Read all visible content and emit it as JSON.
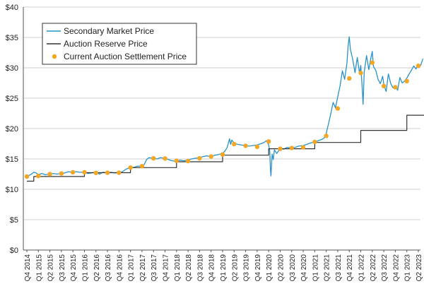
{
  "chart_data": {
    "type": "line",
    "title": "",
    "xlabel": "",
    "ylabel": "",
    "ylim": [
      0,
      40
    ],
    "grid": "horizontal",
    "legend_position": "top-left",
    "y_ticks": [
      0,
      5,
      10,
      15,
      20,
      25,
      30,
      35,
      40
    ],
    "y_tick_labels": [
      "$0",
      "$5",
      "$10",
      "$15",
      "$20",
      "$25",
      "$30",
      "$35",
      "$40"
    ],
    "categories": [
      "Q4 2014",
      "Q1 2015",
      "Q2 2015",
      "Q3 2015",
      "Q4 2015",
      "Q1 2016",
      "Q2 2016",
      "Q3 2016",
      "Q4 2016",
      "Q1 2017",
      "Q2 2017",
      "Q3 2017",
      "Q4 2017",
      "Q1 2018",
      "Q2 2018",
      "Q3 2018",
      "Q4 2018",
      "Q1 2019",
      "Q2 2019",
      "Q3 2019",
      "Q4 2019",
      "Q1 2020",
      "Q2 2020",
      "Q3 2020",
      "Q4 2020",
      "Q1 2021",
      "Q2 2021",
      "Q3 2021",
      "Q4 2021",
      "Q1 2022",
      "Q2 2022",
      "Q3 2022",
      "Q4 2022",
      "Q1 2023",
      "Q2 2023"
    ],
    "series": [
      {
        "name": "Secondary Market Price",
        "style": "line",
        "color": "#2a93c9",
        "points": [
          [
            0,
            12.1
          ],
          [
            0.2,
            12.3
          ],
          [
            0.4,
            12.5
          ],
          [
            0.6,
            12.8
          ],
          [
            0.8,
            12.7
          ],
          [
            1,
            12.4
          ],
          [
            1.3,
            12.6
          ],
          [
            1.6,
            12.4
          ],
          [
            2,
            12.5
          ],
          [
            2.3,
            12.6
          ],
          [
            2.6,
            12.5
          ],
          [
            3,
            12.6
          ],
          [
            3.3,
            12.7
          ],
          [
            3.6,
            12.9
          ],
          [
            4,
            12.8
          ],
          [
            4.3,
            12.9
          ],
          [
            4.6,
            12.8
          ],
          [
            5,
            12.8
          ],
          [
            5.3,
            12.6
          ],
          [
            5.6,
            12.7
          ],
          [
            6,
            12.8
          ],
          [
            6.3,
            12.5
          ],
          [
            6.6,
            12.8
          ],
          [
            7,
            12.7
          ],
          [
            7.3,
            12.8
          ],
          [
            7.6,
            12.7
          ],
          [
            8,
            12.8
          ],
          [
            8.3,
            12.9
          ],
          [
            8.6,
            13.3
          ],
          [
            9,
            13.6
          ],
          [
            9.3,
            13.6
          ],
          [
            9.6,
            13.8
          ],
          [
            10,
            13.8
          ],
          [
            10.2,
            14.1
          ],
          [
            10.4,
            14.9
          ],
          [
            10.6,
            15.2
          ],
          [
            11,
            15.1
          ],
          [
            11.3,
            15.0
          ],
          [
            11.6,
            15.2
          ],
          [
            12,
            15.1
          ],
          [
            12.3,
            14.9
          ],
          [
            12.6,
            14.7
          ],
          [
            13,
            14.6
          ],
          [
            13.3,
            14.8
          ],
          [
            13.6,
            14.7
          ],
          [
            14,
            14.8
          ],
          [
            14.3,
            15.0
          ],
          [
            14.6,
            15.1
          ],
          [
            15,
            15.2
          ],
          [
            15.3,
            15.4
          ],
          [
            15.6,
            15.5
          ],
          [
            16,
            15.4
          ],
          [
            16.3,
            15.6
          ],
          [
            16.6,
            15.7
          ],
          [
            17,
            15.9
          ],
          [
            17.2,
            16.3
          ],
          [
            17.4,
            16.9
          ],
          [
            17.5,
            17.6
          ],
          [
            17.6,
            18.3
          ],
          [
            17.7,
            17.4
          ],
          [
            17.8,
            18.1
          ],
          [
            18,
            17.6
          ],
          [
            18.3,
            17.4
          ],
          [
            18.6,
            17.3
          ],
          [
            19,
            17.2
          ],
          [
            19.3,
            17.1
          ],
          [
            19.6,
            17.2
          ],
          [
            20,
            17.3
          ],
          [
            20.3,
            17.5
          ],
          [
            20.6,
            17.7
          ],
          [
            20.8,
            18.0
          ],
          [
            21,
            17.3
          ],
          [
            21.1,
            16.2
          ],
          [
            21.15,
            13.5
          ],
          [
            21.2,
            12.2
          ],
          [
            21.3,
            15.8
          ],
          [
            21.4,
            14.9
          ],
          [
            21.5,
            16.5
          ],
          [
            21.7,
            15.9
          ],
          [
            22,
            16.7
          ],
          [
            22.3,
            16.6
          ],
          [
            22.6,
            16.9
          ],
          [
            23,
            16.8
          ],
          [
            23.3,
            16.9
          ],
          [
            23.6,
            17.1
          ],
          [
            24,
            17.2
          ],
          [
            24.3,
            17.4
          ],
          [
            24.6,
            17.6
          ],
          [
            25,
            17.8
          ],
          [
            25.3,
            18.0
          ],
          [
            25.6,
            18.2
          ],
          [
            25.8,
            18.4
          ],
          [
            26,
            19.2
          ],
          [
            26.2,
            20.8
          ],
          [
            26.4,
            22.5
          ],
          [
            26.6,
            24.3
          ],
          [
            26.8,
            23.4
          ],
          [
            27,
            25.2
          ],
          [
            27.2,
            27.0
          ],
          [
            27.4,
            29.5
          ],
          [
            27.6,
            28.1
          ],
          [
            27.8,
            30.8
          ],
          [
            27.9,
            33.6
          ],
          [
            28,
            35.1
          ],
          [
            28.1,
            33.0
          ],
          [
            28.3,
            31.4
          ],
          [
            28.5,
            29.2
          ],
          [
            28.7,
            31.7
          ],
          [
            28.9,
            29.0
          ],
          [
            29,
            30.4
          ],
          [
            29.1,
            27.4
          ],
          [
            29.2,
            24.0
          ],
          [
            29.3,
            29.3
          ],
          [
            29.5,
            32.0
          ],
          [
            29.7,
            29.7
          ],
          [
            29.9,
            31.8
          ],
          [
            30,
            32.7
          ],
          [
            30.1,
            30.2
          ],
          [
            30.3,
            29.6
          ],
          [
            30.5,
            28.1
          ],
          [
            30.7,
            27.4
          ],
          [
            30.9,
            28.6
          ],
          [
            31,
            27.3
          ],
          [
            31.2,
            26.1
          ],
          [
            31.4,
            29.0
          ],
          [
            31.6,
            27.4
          ],
          [
            31.8,
            26.7
          ],
          [
            32,
            27.0
          ],
          [
            32.2,
            26.3
          ],
          [
            32.4,
            28.4
          ],
          [
            32.6,
            27.5
          ],
          [
            32.8,
            27.8
          ],
          [
            33,
            28.3
          ],
          [
            33.2,
            29.0
          ],
          [
            33.4,
            29.6
          ],
          [
            33.6,
            30.3
          ],
          [
            33.8,
            29.8
          ],
          [
            34,
            30.6
          ],
          [
            34.2,
            30.4
          ],
          [
            34.4,
            31.5
          ]
        ]
      },
      {
        "name": "Auction Reserve Price",
        "style": "step",
        "color": "#333333",
        "points": [
          [
            0,
            11.34
          ],
          [
            0.6,
            11.34
          ],
          [
            0.6,
            12.1
          ],
          [
            5,
            12.1
          ],
          [
            5,
            12.73
          ],
          [
            9,
            12.73
          ],
          [
            9,
            13.57
          ],
          [
            13,
            13.57
          ],
          [
            13,
            14.53
          ],
          [
            17,
            14.53
          ],
          [
            17,
            15.62
          ],
          [
            21,
            15.62
          ],
          [
            21,
            16.68
          ],
          [
            25,
            16.68
          ],
          [
            25,
            17.71
          ],
          [
            29,
            17.71
          ],
          [
            29,
            19.7
          ],
          [
            33,
            19.7
          ],
          [
            33,
            22.2
          ],
          [
            34.6,
            22.2
          ]
        ]
      },
      {
        "name": "Current Auction Settlement Price",
        "style": "dots",
        "color": "#f5a623",
        "points": [
          [
            0,
            12.1
          ],
          [
            1,
            12.2
          ],
          [
            2,
            12.5
          ],
          [
            3,
            12.6
          ],
          [
            4,
            12.8
          ],
          [
            5,
            12.8
          ],
          [
            6,
            12.7
          ],
          [
            7,
            12.73
          ],
          [
            8,
            12.73
          ],
          [
            9,
            13.57
          ],
          [
            10,
            13.8
          ],
          [
            11,
            15.1
          ],
          [
            12,
            15.06
          ],
          [
            13,
            14.7
          ],
          [
            14,
            14.65
          ],
          [
            15,
            15.1
          ],
          [
            16,
            15.4
          ],
          [
            17,
            15.73
          ],
          [
            18,
            17.45
          ],
          [
            19,
            17.16
          ],
          [
            20,
            17.0
          ],
          [
            21,
            17.87
          ],
          [
            22,
            16.68
          ],
          [
            23,
            16.8
          ],
          [
            24,
            16.9
          ],
          [
            25,
            17.8
          ],
          [
            26,
            18.8
          ],
          [
            27,
            23.3
          ],
          [
            28,
            28.26
          ],
          [
            29,
            29.15
          ],
          [
            30,
            30.85
          ],
          [
            31,
            27.0
          ],
          [
            32,
            26.8
          ],
          [
            33,
            27.8
          ],
          [
            34,
            30.33
          ]
        ]
      }
    ]
  }
}
